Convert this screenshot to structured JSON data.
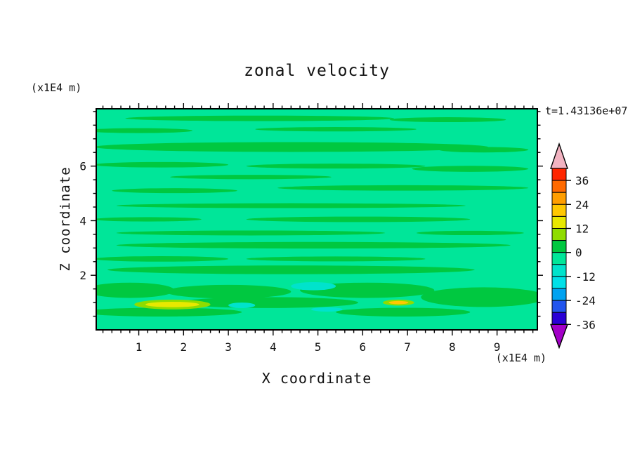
{
  "chart_data": {
    "type": "heatmap",
    "title": "zonal velocity",
    "time_label": "t=1.43136e+07",
    "xlabel": "X coordinate",
    "xunits": "(x1E4 m)",
    "ylabel": "Z coordinate",
    "yunits": "(x1E4 m)",
    "xlim": [
      0.05,
      9.9
    ],
    "ylim": [
      0,
      8.1
    ],
    "x_major_ticks": [
      1,
      2,
      3,
      4,
      5,
      6,
      7,
      8,
      9
    ],
    "x_minor_step": 0.2,
    "y_major_ticks": [
      2,
      4,
      6
    ],
    "y_minor_step": 0.5,
    "grid": false,
    "base_band": "-6..0",
    "palette": {
      "-18..-12": "#00E0E8",
      "-12..-6": "#00E3CC",
      "-6..0": "#00E699",
      "0..6": "#00C840",
      "6..12": "#8FDC00",
      "12..18": "#E8E800",
      "18..24": "#FFC800"
    },
    "field_summary": "Zonal velocity section: mostly uniform values in the -6..0 band with thin horizontal streaks in the 0..6 band; small turquoise patches (-12..-6) and yellow/orange spots (6..24) near the lower boundary.",
    "features": [
      {
        "x": 3.7,
        "z": 7.75,
        "dx": 3.0,
        "dz": 0.1,
        "band": "0..6"
      },
      {
        "x": 7.9,
        "z": 7.7,
        "dx": 1.3,
        "dz": 0.09,
        "band": "0..6"
      },
      {
        "x": 1.0,
        "z": 7.3,
        "dx": 1.2,
        "dz": 0.09,
        "band": "0..6"
      },
      {
        "x": 5.4,
        "z": 7.35,
        "dx": 1.8,
        "dz": 0.08,
        "band": "0..6"
      },
      {
        "x": 4.4,
        "z": 6.7,
        "dx": 4.4,
        "dz": 0.18,
        "band": "0..6"
      },
      {
        "x": 8.7,
        "z": 6.6,
        "dx": 1.0,
        "dz": 0.1,
        "band": "0..6"
      },
      {
        "x": 1.5,
        "z": 6.05,
        "dx": 1.5,
        "dz": 0.1,
        "band": "0..6"
      },
      {
        "x": 5.4,
        "z": 6.0,
        "dx": 2.0,
        "dz": 0.09,
        "band": "0..6"
      },
      {
        "x": 8.4,
        "z": 5.9,
        "dx": 1.3,
        "dz": 0.11,
        "band": "0..6"
      },
      {
        "x": 3.5,
        "z": 5.6,
        "dx": 1.8,
        "dz": 0.08,
        "band": "0..6"
      },
      {
        "x": 6.9,
        "z": 5.2,
        "dx": 2.8,
        "dz": 0.1,
        "band": "0..6"
      },
      {
        "x": 1.8,
        "z": 5.1,
        "dx": 1.4,
        "dz": 0.09,
        "band": "0..6"
      },
      {
        "x": 4.4,
        "z": 4.55,
        "dx": 3.9,
        "dz": 0.09,
        "band": "0..6"
      },
      {
        "x": 1.2,
        "z": 4.05,
        "dx": 1.2,
        "dz": 0.08,
        "band": "0..6"
      },
      {
        "x": 5.9,
        "z": 4.05,
        "dx": 2.5,
        "dz": 0.1,
        "band": "0..6"
      },
      {
        "x": 3.5,
        "z": 3.55,
        "dx": 3.0,
        "dz": 0.09,
        "band": "0..6"
      },
      {
        "x": 8.4,
        "z": 3.55,
        "dx": 1.2,
        "dz": 0.08,
        "band": "0..6"
      },
      {
        "x": 4.9,
        "z": 3.1,
        "dx": 4.4,
        "dz": 0.12,
        "band": "0..6"
      },
      {
        "x": 1.5,
        "z": 2.6,
        "dx": 1.5,
        "dz": 0.1,
        "band": "0..6"
      },
      {
        "x": 5.4,
        "z": 2.6,
        "dx": 2.0,
        "dz": 0.09,
        "band": "0..6"
      },
      {
        "x": 4.4,
        "z": 2.2,
        "dx": 4.1,
        "dz": 0.16,
        "band": "0..6"
      },
      {
        "x": 0.8,
        "z": 1.45,
        "dx": 1.0,
        "dz": 0.28,
        "band": "0..6"
      },
      {
        "x": 3.0,
        "z": 1.4,
        "dx": 1.4,
        "dz": 0.25,
        "band": "0..6"
      },
      {
        "x": 6.1,
        "z": 1.45,
        "dx": 1.5,
        "dz": 0.28,
        "band": "0..6"
      },
      {
        "x": 8.7,
        "z": 1.2,
        "dx": 1.4,
        "dz": 0.36,
        "band": "0..6"
      },
      {
        "x": 3.9,
        "z": 1.0,
        "dx": 2.0,
        "dz": 0.2,
        "band": "0..6"
      },
      {
        "x": 1.5,
        "z": 0.65,
        "dx": 1.8,
        "dz": 0.16,
        "band": "0..6"
      },
      {
        "x": 6.9,
        "z": 0.65,
        "dx": 1.5,
        "dz": 0.16,
        "band": "0..6"
      },
      {
        "x": 4.9,
        "z": 1.6,
        "dx": 0.5,
        "dz": 0.15,
        "band": "-12..-6"
      },
      {
        "x": 3.3,
        "z": 0.9,
        "dx": 0.3,
        "dz": 0.1,
        "band": "-12..-6"
      },
      {
        "x": 5.2,
        "z": 0.75,
        "dx": 0.35,
        "dz": 0.08,
        "band": "-12..-6"
      },
      {
        "x": 1.75,
        "z": 0.93,
        "dx": 0.85,
        "dz": 0.18,
        "band": "6..12"
      },
      {
        "x": 1.75,
        "z": 0.93,
        "dx": 0.6,
        "dz": 0.1,
        "band": "12..18"
      },
      {
        "x": 6.8,
        "z": 1.0,
        "dx": 0.35,
        "dz": 0.11,
        "band": "6..12"
      },
      {
        "x": 6.8,
        "z": 1.0,
        "dx": 0.22,
        "dz": 0.06,
        "band": "18..24"
      }
    ],
    "colorbar": {
      "tick_labels": [
        36,
        24,
        12,
        0,
        -12,
        -24,
        -36
      ],
      "level_step": 6,
      "over_color": "#F2B3C1",
      "under_color": "#A300C8",
      "segments_top_to_bottom": [
        {
          "range": "36..42",
          "color": "#FF2600"
        },
        {
          "range": "30..36",
          "color": "#FF6A00"
        },
        {
          "range": "24..30",
          "color": "#FF9E00"
        },
        {
          "range": "18..24",
          "color": "#FFC800"
        },
        {
          "range": "12..18",
          "color": "#E8E800"
        },
        {
          "range": "6..12",
          "color": "#8FDC00"
        },
        {
          "range": "0..6",
          "color": "#00C840"
        },
        {
          "range": "-6..0",
          "color": "#00E699"
        },
        {
          "range": "-12..-6",
          "color": "#00E3CC"
        },
        {
          "range": "-18..-12",
          "color": "#00E0E8"
        },
        {
          "range": "-24..-18",
          "color": "#00A2F0"
        },
        {
          "range": "-30..-24",
          "color": "#2255EE"
        },
        {
          "range": "-36..-30",
          "color": "#2A00D5"
        }
      ]
    }
  }
}
